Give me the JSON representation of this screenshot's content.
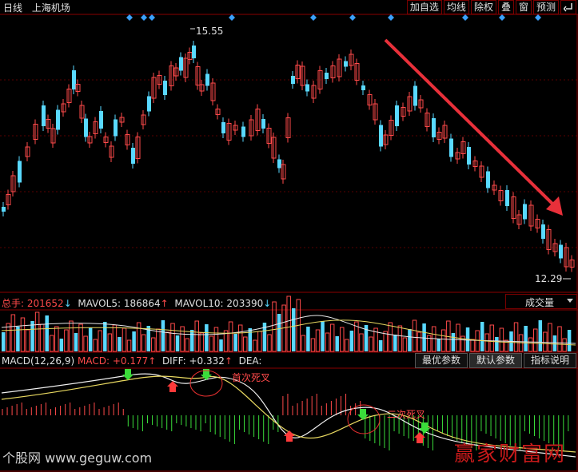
{
  "toolbar": {
    "period": "日线",
    "stock_name": "上海机场",
    "buttons": [
      "加自选",
      "均线",
      "除权",
      "叠",
      "窗",
      "预测"
    ],
    "back_icon": "return-arrow-icon"
  },
  "price_panel": {
    "high_label": "15.55",
    "low_label": "12.29"
  },
  "volume_panel": {
    "total_label": "总手:",
    "total_value": "201652",
    "mavol5_label": "MAVOL5:",
    "mavol5_value": "186864",
    "mavol10_label": "MAVOL10:",
    "mavol10_value": "203390",
    "selector": "成交量"
  },
  "macd_panel": {
    "title": "MACD(12,26,9)",
    "macd_label": "MACD:",
    "macd_value": "+0.177",
    "diff_label": "DIFF:",
    "diff_value": "+0.332",
    "dea_label": "DEA:",
    "dea_value": "",
    "buttons": [
      "最优参数",
      "默认参数",
      "指标说明"
    ],
    "annotations": [
      "首次死叉",
      "二次死叉"
    ]
  },
  "watermarks": {
    "left": "个股网 www.geguw.com",
    "right": "赢家财富网"
  },
  "colors": {
    "up": "#ff4a4a",
    "down": "#59d9ff",
    "accent_arrow": "#e8303a",
    "diamond": "#3aa0ff"
  }
}
